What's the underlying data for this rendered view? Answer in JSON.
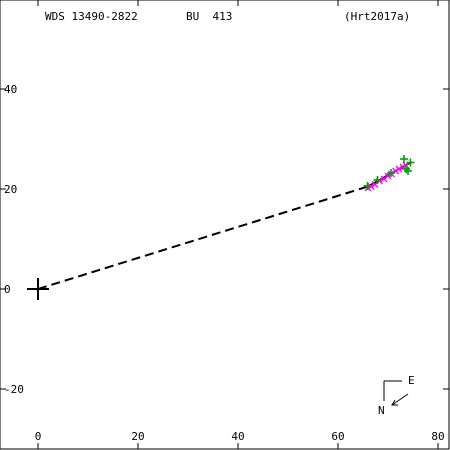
{
  "header": {
    "wds": "WDS 13490-2822",
    "disc": "BU  413",
    "reference": "(Hrt2017a)"
  },
  "compass": {
    "east_label": "E",
    "north_label": "N"
  },
  "colors": {
    "obs_a": "#ff00ff",
    "obs_b": "#00a000",
    "axis": "#000000"
  },
  "chart_data": {
    "type": "scatter",
    "title": "",
    "xlabel": "",
    "ylabel": "",
    "xlim": [
      -7,
      81
    ],
    "ylim": [
      -32,
      57
    ],
    "x_ticks": [
      0,
      20,
      40,
      60,
      80
    ],
    "y_ticks": [
      -20,
      0,
      20,
      40
    ],
    "x_tick_labels": [
      "0",
      "20",
      "40",
      "60",
      "80"
    ],
    "y_tick_labels": [
      "-20",
      "0",
      "20",
      "40"
    ],
    "grid": false,
    "primary_marker": {
      "x": 0,
      "y": 0,
      "marker": "plus"
    },
    "dashed_line": [
      [
        0,
        0
      ],
      [
        66,
        20.5
      ]
    ],
    "fit_segment": [
      [
        66,
        20.5
      ],
      [
        74.5,
        25.3
      ]
    ],
    "series": [
      {
        "marker": "x",
        "color": "#ff00ff",
        "points": [
          [
            66.0,
            20.2
          ],
          [
            66.6,
            20.5
          ],
          [
            67.4,
            20.9
          ],
          [
            68.3,
            21.6
          ],
          [
            69.2,
            22.0
          ],
          [
            70.0,
            22.6
          ],
          [
            70.7,
            23.0
          ],
          [
            71.5,
            23.6
          ],
          [
            72.2,
            24.0
          ],
          [
            73.0,
            24.4
          ],
          [
            73.6,
            24.7
          ]
        ]
      },
      {
        "marker": "plus",
        "color": "#00a000",
        "points": [
          [
            65.9,
            20.6
          ],
          [
            67.9,
            21.8
          ],
          [
            70.6,
            23.2
          ],
          [
            73.2,
            26.0
          ],
          [
            73.6,
            24.0
          ],
          [
            74.0,
            23.6
          ],
          [
            74.5,
            25.3
          ]
        ]
      }
    ]
  }
}
